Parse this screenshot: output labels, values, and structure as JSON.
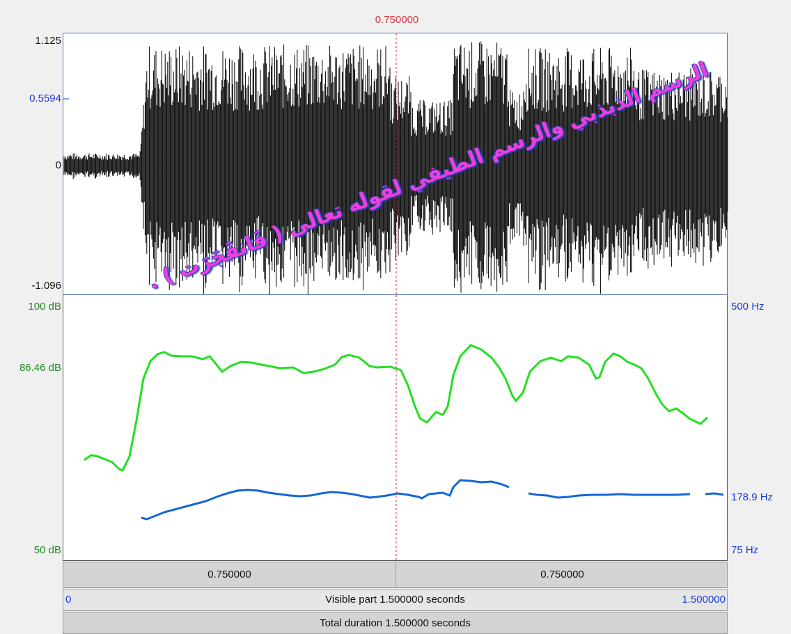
{
  "cursor": {
    "time_label": "0.750000"
  },
  "waveform": {
    "y_labels": {
      "top": "1.125",
      "upper": "0.5594",
      "zero": "0",
      "bottom": "-1.096"
    },
    "overlay_text": "الرسم الذبذبي والرسم الطيفي لقوله تعالى ( فَانفَجَرَت ) .",
    "waveform_color": "#000000"
  },
  "analysis": {
    "left_labels": {
      "top": "100 dB",
      "mid": "86.46 dB",
      "bottom": "50 dB"
    },
    "right_labels": {
      "top": "500 Hz",
      "mid": "178.9 Hz",
      "bottom": "75 Hz"
    },
    "intensity_color": "#22e01f",
    "pitch_color": "#1566d6",
    "intensity_label_color": "#1f8a1f",
    "pitch_label_color": "#1a3bd6"
  },
  "time_bar": {
    "left_segment": "0.750000",
    "right_segment": "0.750000"
  },
  "visible_bar": {
    "start": "0",
    "label": "Visible part 1.500000 seconds",
    "end": "1.500000"
  },
  "total_bar": {
    "label": "Total duration 1.500000 seconds"
  }
}
